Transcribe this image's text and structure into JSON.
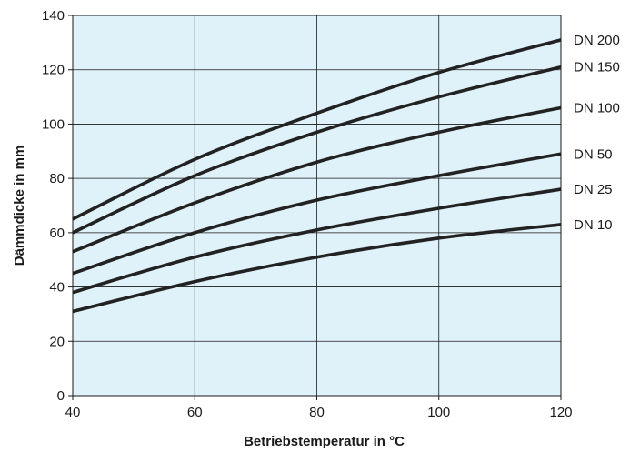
{
  "chart_data": {
    "type": "line",
    "title": "",
    "xlabel": "Betriebstemperatur in °C",
    "ylabel": "Dämmdicke in mm",
    "xlim": [
      40,
      120
    ],
    "ylim": [
      0,
      140
    ],
    "x_ticks": [
      40,
      60,
      80,
      100,
      120
    ],
    "y_ticks": [
      0,
      20,
      40,
      60,
      80,
      100,
      120,
      140
    ],
    "grid": true,
    "plot_background": "#dff1f9",
    "line_color": "#222222",
    "x": [
      40,
      60,
      80,
      100,
      120
    ],
    "series": [
      {
        "name": "DN 200",
        "values": [
          65,
          87,
          104,
          119,
          131
        ]
      },
      {
        "name": "DN 150",
        "values": [
          60,
          81,
          97,
          110,
          121
        ]
      },
      {
        "name": "DN 100",
        "values": [
          53,
          71,
          86,
          97,
          106
        ]
      },
      {
        "name": "DN 50",
        "values": [
          45,
          60,
          72,
          81,
          89
        ]
      },
      {
        "name": "DN 25",
        "values": [
          38,
          51,
          61,
          69,
          76
        ]
      },
      {
        "name": "DN 10",
        "values": [
          31,
          42,
          51,
          58,
          63
        ]
      }
    ]
  }
}
